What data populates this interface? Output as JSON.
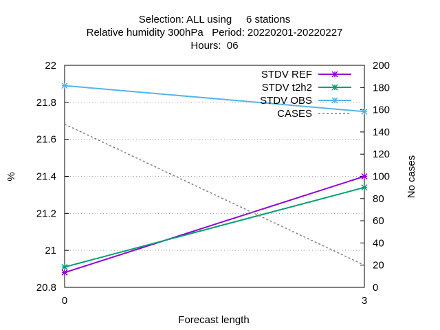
{
  "chart_data": {
    "type": "line",
    "title_lines": [
      "Selection: ALL using     6 stations",
      "Relative humidity 300hPa   Period: 20220201-20220227",
      "Hours:  06"
    ],
    "xlabel": "Forecast length",
    "ylabel": "%",
    "y2label": "No cases",
    "x": [
      0,
      3
    ],
    "xlim": [
      0,
      3
    ],
    "xticks": [
      "0",
      "3"
    ],
    "ylim": [
      20.8,
      22
    ],
    "yticks": [
      "20.8",
      "21",
      "21.2",
      "21.4",
      "21.6",
      "21.8",
      "22"
    ],
    "y2lim": [
      0,
      200
    ],
    "y2ticks": [
      "0",
      "20",
      "40",
      "60",
      "80",
      "100",
      "120",
      "140",
      "160",
      "180",
      "200"
    ],
    "grid": true,
    "legend_position": "top-right",
    "series": [
      {
        "name": "STDV REF",
        "axis": "y",
        "values": [
          20.88,
          21.4
        ],
        "color": "#9400d3",
        "dash": false,
        "marker": true
      },
      {
        "name": "STDV t2h2",
        "axis": "y",
        "values": [
          20.91,
          21.34
        ],
        "color": "#009e73",
        "dash": false,
        "marker": true
      },
      {
        "name": "STDV OBS",
        "axis": "y",
        "values": [
          21.89,
          21.75
        ],
        "color": "#56b4e9",
        "dash": false,
        "marker": true
      },
      {
        "name": "CASES",
        "axis": "y2",
        "values": [
          147,
          20
        ],
        "color": "#808080",
        "dash": true,
        "marker": false
      }
    ]
  }
}
